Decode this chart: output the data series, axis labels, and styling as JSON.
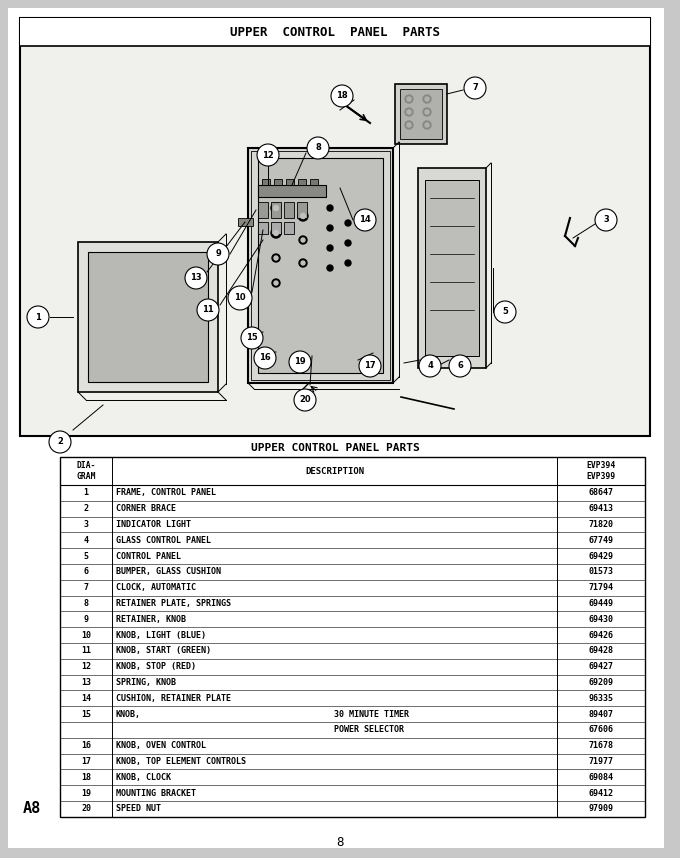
{
  "page_bg": "#c8c8c8",
  "title_diagram": "UPPER  CONTROL  PANEL  PARTS",
  "table_title": "UPPER CONTROL PANEL PARTS",
  "rows": [
    [
      "1",
      "FRAME, CONTROL PANEL",
      "",
      "68647"
    ],
    [
      "2",
      "CORNER BRACE",
      "",
      "69413"
    ],
    [
      "3",
      "INDICATOR LIGHT",
      "",
      "71820"
    ],
    [
      "4",
      "GLASS CONTROL PANEL",
      "",
      "67749"
    ],
    [
      "5",
      "CONTROL PANEL",
      "",
      "69429"
    ],
    [
      "6",
      "BUMPER, GLASS CUSHION",
      "",
      "01573"
    ],
    [
      "7",
      "CLOCK, AUTOMATIC",
      "",
      "71794"
    ],
    [
      "8",
      "RETAINER PLATE, SPRINGS",
      "",
      "69449"
    ],
    [
      "9",
      "RETAINER, KNOB",
      "",
      "69430"
    ],
    [
      "10",
      "KNOB, LIGHT (BLUE)",
      "",
      "69426"
    ],
    [
      "11",
      "KNOB, START (GREEN)",
      "",
      "69428"
    ],
    [
      "12",
      "KNOB, STOP (RED)",
      "",
      "69427"
    ],
    [
      "13",
      "SPRING, KNOB",
      "",
      "69209"
    ],
    [
      "14",
      "CUSHION, RETAINER PLATE",
      "",
      "96335"
    ],
    [
      "15",
      "KNOB,",
      "30 MINUTE TIMER",
      "89407"
    ],
    [
      "",
      "",
      "POWER SELECTOR",
      "67606"
    ],
    [
      "16",
      "KNOB, OVEN CONTROL",
      "",
      "71678"
    ],
    [
      "17",
      "KNOB, TOP ELEMENT CONTROLS",
      "",
      "71977"
    ],
    [
      "18",
      "KNOB, CLOCK",
      "",
      "69084"
    ],
    [
      "19",
      "MOUNTING BRACKET",
      "",
      "69412"
    ],
    [
      "20",
      "SPEED NUT",
      "",
      "97909"
    ]
  ],
  "page_label": "A8",
  "page_number": "8"
}
